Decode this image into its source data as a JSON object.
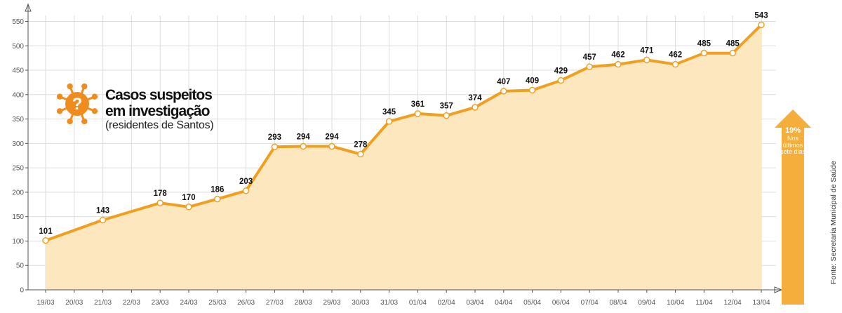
{
  "title": {
    "line1": "Casos suspeitos",
    "line2": "em investigação",
    "subtitle": "(residentes de Santos)"
  },
  "icon": "virus-question-icon",
  "growth": {
    "percent": "19%",
    "description": "Nos últimos sete dias"
  },
  "source": "Fonte: Secretaria Municipal de Saúde",
  "colors": {
    "line": "#F0A020",
    "area": "#FCE7BE",
    "grid": "#DDDDDD",
    "arrow": "#F5AE3B",
    "icon": "#F08C1E"
  },
  "chart_data": {
    "type": "line",
    "title": "Casos suspeitos em investigação",
    "subtitle": "(residentes de Santos)",
    "xlabel": "",
    "ylabel": "",
    "ylim": [
      0,
      550
    ],
    "yticks": [
      0,
      50,
      100,
      150,
      200,
      250,
      300,
      350,
      400,
      450,
      500,
      550
    ],
    "grid": true,
    "x": [
      "19/03",
      "20/03",
      "21/03",
      "22/03",
      "23/03",
      "24/03",
      "25/03",
      "26/03",
      "27/03",
      "28/03",
      "29/03",
      "30/03",
      "31/03",
      "01/04",
      "02/04",
      "03/04",
      "04/04",
      "05/04",
      "06/04",
      "07/04",
      "08/04",
      "09/04",
      "10/04",
      "11/04",
      "12/04",
      "13/04"
    ],
    "points": [
      {
        "x": "19/03",
        "y": 101
      },
      {
        "x": "21/03",
        "y": 143
      },
      {
        "x": "23/03",
        "y": 178
      },
      {
        "x": "24/03",
        "y": 170
      },
      {
        "x": "25/03",
        "y": 186
      },
      {
        "x": "26/03",
        "y": 203
      },
      {
        "x": "27/03",
        "y": 293
      },
      {
        "x": "28/03",
        "y": 294
      },
      {
        "x": "29/03",
        "y": 294
      },
      {
        "x": "30/03",
        "y": 278
      },
      {
        "x": "31/03",
        "y": 345
      },
      {
        "x": "01/04",
        "y": 361
      },
      {
        "x": "02/04",
        "y": 357
      },
      {
        "x": "03/04",
        "y": 374
      },
      {
        "x": "04/04",
        "y": 407
      },
      {
        "x": "05/04",
        "y": 409
      },
      {
        "x": "06/04",
        "y": 429
      },
      {
        "x": "07/04",
        "y": 457
      },
      {
        "x": "08/04",
        "y": 462
      },
      {
        "x": "09/04",
        "y": 471
      },
      {
        "x": "10/04",
        "y": 462
      },
      {
        "x": "11/04",
        "y": 485
      },
      {
        "x": "12/04",
        "y": 485
      },
      {
        "x": "13/04",
        "y": 543
      }
    ]
  }
}
